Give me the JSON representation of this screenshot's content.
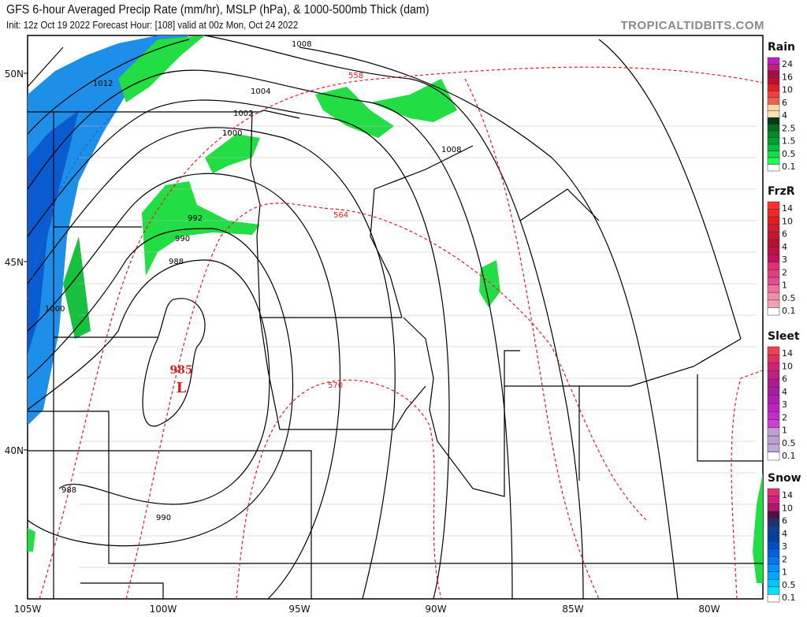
{
  "header": {
    "title": "GFS 6-hour Averaged Precip Rate (mm/hr), MSLP (hPa), & 1000-500mb Thick (dam)",
    "subtitle": "Init: 12z Oct 19 2022   Forecast Hour: [108]   valid at 00z Mon, Oct 24 2022",
    "brand": "TROPICALTIDBITS.COM"
  },
  "map": {
    "lat_labels": [
      "50N",
      "45N",
      "40N"
    ],
    "lon_labels": [
      "105W",
      "100W",
      "95W",
      "90W",
      "85W",
      "80W"
    ],
    "isobar_labels": [
      "1008",
      "1012",
      "1004",
      "1002",
      "1000",
      "992",
      "990",
      "988",
      "1000",
      "1008",
      "988",
      "990"
    ],
    "thickness_labels": [
      "558",
      "564",
      "570"
    ],
    "low": {
      "pressure": "985",
      "symbol": "L",
      "color": "#d02020"
    },
    "colors": {
      "precip_light": "#22dd44",
      "precip_snow": "#1e90ff",
      "isobar": "#000000",
      "thickness": "#e02020"
    }
  },
  "legend": [
    {
      "title": "Rain",
      "labels": [
        "24",
        "16",
        "10",
        "6",
        "4",
        "2.5",
        "1.5",
        "0.5",
        "0.1"
      ],
      "colors": [
        "#c020c0",
        "#c02080",
        "#a01040",
        "#c01030",
        "#e02020",
        "#f04040",
        "#f06050",
        "#ffd8a0",
        "#ffe0b0",
        "#003a10",
        "#006a20",
        "#008a28",
        "#00a030",
        "#00c040",
        "#10e040",
        "#20ff50",
        "#ffffff"
      ]
    },
    {
      "title": "FrzR",
      "labels": [
        "14",
        "10",
        "6",
        "4",
        "3",
        "2",
        "1",
        "0.5",
        "0.1"
      ],
      "colors": [
        "#ff3030",
        "#f02828",
        "#e02020",
        "#d01c2c",
        "#c81830",
        "#b81030",
        "#c01040",
        "#c01060",
        "#e03070",
        "#e04080",
        "#e05090",
        "#f070a0",
        "#f090a8",
        "#f0a0b0",
        "#ffffff"
      ]
    },
    {
      "title": "Sleet",
      "labels": [
        "14",
        "10",
        "6",
        "4",
        "3",
        "2",
        "1",
        "0.5",
        "0.1"
      ],
      "colors": [
        "#f04050",
        "#e03060",
        "#d02070",
        "#c02080",
        "#b01890",
        "#a020a0",
        "#b020b0",
        "#c020c0",
        "#c030c8",
        "#d040d0",
        "#c0a0d0",
        "#b8a0d0",
        "#c0a8d8",
        "#ffffff"
      ]
    },
    {
      "title": "Snow",
      "labels": [
        "14",
        "10",
        "6",
        "4",
        "3",
        "2",
        "1",
        "0.5",
        "0.1"
      ],
      "colors": [
        "#e03070",
        "#d02080",
        "#b01870",
        "#501040",
        "#203070",
        "#104090",
        "#0040a0",
        "#0050c0",
        "#0060e0",
        "#0078f0",
        "#0090ff",
        "#00a8ff",
        "#00c8ff",
        "#00e0ff",
        "#ffffff"
      ]
    }
  ]
}
